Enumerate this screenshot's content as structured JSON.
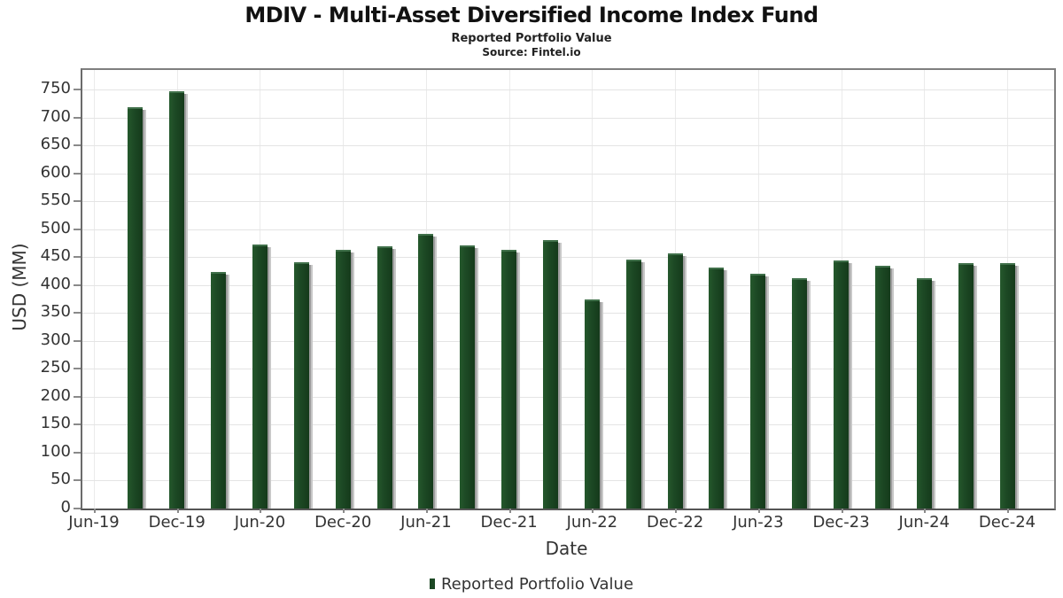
{
  "title": "MDIV - Multi-Asset Diversified Income Index Fund",
  "subtitle": "Reported Portfolio Value",
  "source": "Source: Fintel.io",
  "legend": {
    "label": "Reported Portfolio Value",
    "marker_color": "#1c4824"
  },
  "chart_data": {
    "type": "bar",
    "title": "MDIV - Multi-Asset Diversified Income Index Fund",
    "subtitle": "Reported Portfolio Value",
    "source": "Source: Fintel.io",
    "xlabel": "Date",
    "ylabel": "USD (MM)",
    "series_name": "Reported Portfolio Value",
    "categories": [
      "Sep-19",
      "Dec-19",
      "Mar-20",
      "Jun-20",
      "Sep-20",
      "Dec-20",
      "Mar-21",
      "Jun-21",
      "Sep-21",
      "Dec-21",
      "Mar-22",
      "Jun-22",
      "Sep-22",
      "Dec-22",
      "Mar-23",
      "Jun-23",
      "Sep-23",
      "Dec-23",
      "Mar-24",
      "Jun-24",
      "Sep-24",
      "Dec-24"
    ],
    "values": [
      718,
      747,
      423,
      473,
      441,
      463,
      469,
      491,
      471,
      463,
      481,
      374,
      445,
      456,
      432,
      421,
      412,
      444,
      435,
      413,
      440,
      439
    ],
    "x_major_ticks": [
      "Jun-19",
      "Dec-19",
      "Jun-20",
      "Dec-20",
      "Jun-21",
      "Dec-21",
      "Jun-22",
      "Dec-22",
      "Jun-23",
      "Dec-23",
      "Jun-24",
      "Dec-24"
    ],
    "y_ticks": [
      0,
      50,
      100,
      150,
      200,
      250,
      300,
      350,
      400,
      450,
      500,
      550,
      600,
      650,
      700,
      750
    ],
    "ylim": [
      0,
      785
    ],
    "ytick_interval": 50,
    "grid": true,
    "legend_position": "bottom-center",
    "colors": {
      "bar": "#1c4824",
      "bar_highlight": "#40704a",
      "bar_shadow": "#9c9c9c",
      "gridline": "#e4e4e4",
      "axis_border": "#7f7f7f",
      "text": "#333333"
    }
  }
}
